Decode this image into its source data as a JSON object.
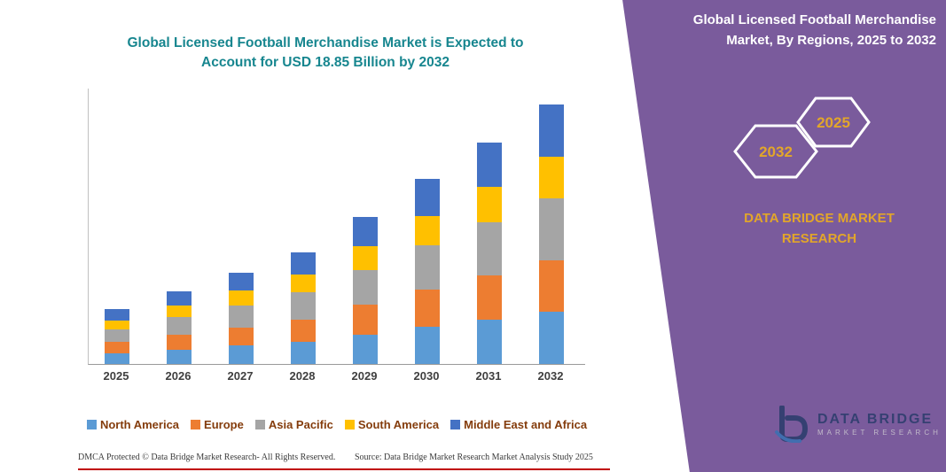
{
  "title": {
    "text": "Global Licensed Football Merchandise Market is Expected to Account for USD 18.85 Billion by 2032"
  },
  "side_panel": {
    "heading": "Global Licensed Football Merchandise Market, By Regions, 2025 to 2032",
    "hexagons": [
      "2032",
      "2025"
    ],
    "brand": "DATA BRIDGE MARKET RESEARCH",
    "panel_color": "#7a5b9c",
    "accent_gold": "#e2a62a"
  },
  "logo": {
    "name": "DATA BRIDGE",
    "sub": "MARKET RESEARCH"
  },
  "footer": {
    "dmca": "DMCA Protected © Data Bridge Market Research-  All Rights Reserved.",
    "source": "Source: Data Bridge Market Research  Market Analysis Study 2025"
  },
  "chart_data": {
    "type": "bar",
    "stacked": true,
    "title": "Global Licensed Football Merchandise Market is Expected to Account for USD 18.85 Billion by 2032",
    "categories": [
      "2025",
      "2026",
      "2027",
      "2028",
      "2029",
      "2030",
      "2031",
      "2032"
    ],
    "series": [
      {
        "name": "North America",
        "color": "#5b9bd5",
        "values": [
          0.8,
          1.06,
          1.33,
          1.62,
          2.14,
          2.69,
          3.22,
          3.77
        ]
      },
      {
        "name": "Europe",
        "color": "#ed7d31",
        "values": [
          0.79,
          1.06,
          1.33,
          1.62,
          2.14,
          2.69,
          3.22,
          3.77
        ]
      },
      {
        "name": "Asia Pacific",
        "color": "#a5a5a5",
        "values": [
          0.95,
          1.27,
          1.6,
          1.94,
          2.56,
          3.22,
          3.86,
          4.52
        ]
      },
      {
        "name": "South America",
        "color": "#ffc000",
        "values": [
          0.64,
          0.84,
          1.06,
          1.29,
          1.71,
          2.15,
          2.58,
          3.02
        ]
      },
      {
        "name": "Middle East and Africa",
        "color": "#4472c4",
        "values": [
          0.79,
          1.05,
          1.33,
          1.62,
          2.14,
          2.68,
          3.22,
          3.77
        ]
      }
    ],
    "totals": [
      3.97,
      5.28,
      6.65,
      8.09,
      10.69,
      13.43,
      16.1,
      18.85
    ],
    "xlabel": "",
    "ylabel": "",
    "ylim": [
      0,
      20
    ],
    "grid": false,
    "legend_position": "bottom",
    "units": "USD Billion"
  }
}
